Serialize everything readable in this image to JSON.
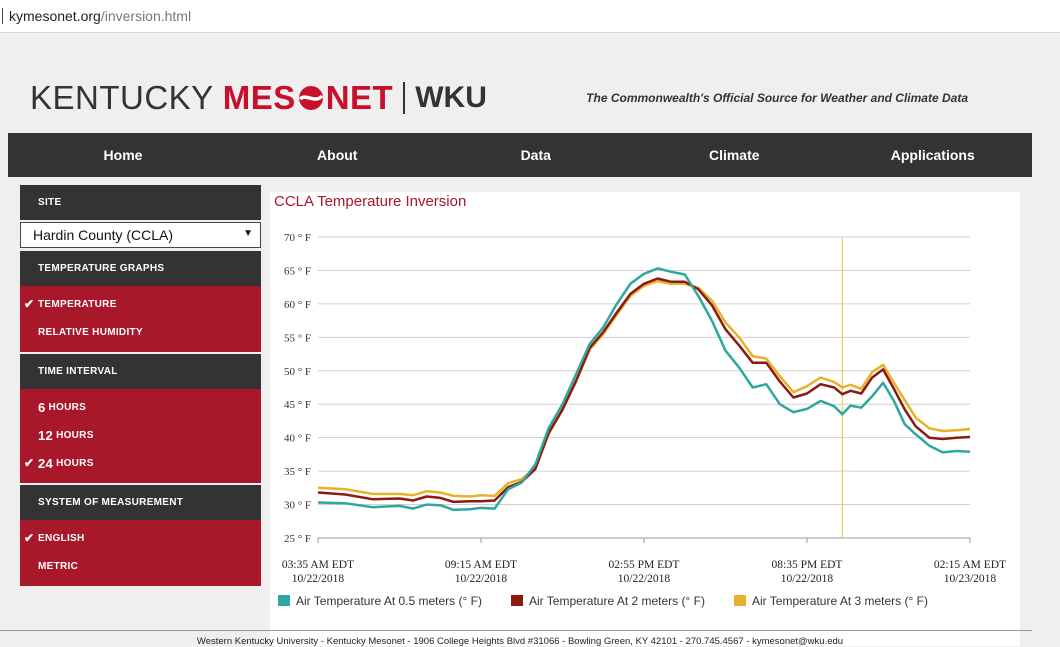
{
  "browser": {
    "url_host": "kymesonet.org",
    "url_path": "/inversion.html"
  },
  "header": {
    "logo_kentucky": "KENTUCKY",
    "logo_mesonet_left": "MES",
    "logo_mesonet_right": "NET",
    "logo_wku": "WKU",
    "tagline": "The Commonwealth's Official Source for Weather and Climate Data"
  },
  "nav": {
    "items": [
      "Home",
      "About",
      "Data",
      "Climate",
      "Applications"
    ]
  },
  "sidebar": {
    "site_heading": "SITE",
    "site_selected": "Hardin County (CCLA)",
    "graphs_heading": "TEMPERATURE GRAPHS",
    "graphs": [
      {
        "label": "TEMPERATURE",
        "checked": true
      },
      {
        "label": "RELATIVE HUMIDITY",
        "checked": false
      }
    ],
    "interval_heading": "TIME INTERVAL",
    "intervals": [
      {
        "num": "6",
        "label": "HOURS",
        "checked": false
      },
      {
        "num": "12",
        "label": "HOURS",
        "checked": false
      },
      {
        "num": "24",
        "label": "HOURS",
        "checked": true
      }
    ],
    "measure_heading": "SYSTEM OF MEASUREMENT",
    "measures": [
      {
        "label": "ENGLISH",
        "checked": true
      },
      {
        "label": "METRIC",
        "checked": false
      }
    ]
  },
  "colors": {
    "accent": "#a8172a",
    "nav": "#333333",
    "series1": "#2ea89e",
    "series2": "#8b1a10",
    "series3": "#e8b12a",
    "marker": "#e8d060"
  },
  "chart_data": {
    "type": "line",
    "title": "CCLA Temperature Inversion",
    "ylim": [
      25,
      70
    ],
    "y_ticks": [
      "25 ° F",
      "30 ° F",
      "35 ° F",
      "40 ° F",
      "45 ° F",
      "50 ° F",
      "55 ° F",
      "60 ° F",
      "65 ° F",
      "70 ° F"
    ],
    "x_ticks": [
      {
        "time": "03:35 AM EDT",
        "date": "10/22/2018"
      },
      {
        "time": "09:15 AM EDT",
        "date": "10/22/2018"
      },
      {
        "time": "02:55 PM EDT",
        "date": "10/22/2018"
      },
      {
        "time": "08:35 PM EDT",
        "date": "10/22/2018"
      },
      {
        "time": "02:15 AM EDT",
        "date": "10/23/2018"
      }
    ],
    "x_unit": "hours since 03:35 AM EDT 10/22/2018",
    "xlim": [
      0,
      24
    ],
    "marker_x": 19.3,
    "grid": true,
    "legend": "bottom",
    "series": [
      {
        "name": "Air Temperature At 0.5 meters (° F)",
        "x": [
          0,
          1,
          2,
          3,
          3.5,
          4,
          4.5,
          5,
          5.6,
          6,
          6.5,
          7,
          7.5,
          8,
          8.5,
          9,
          9.5,
          10,
          10.5,
          11,
          11.5,
          12,
          12.5,
          13,
          13.5,
          14,
          14.5,
          15,
          15.5,
          16,
          16.5,
          17,
          17.5,
          18,
          18.5,
          19,
          19.3,
          19.6,
          20,
          20.4,
          20.8,
          21.2,
          21.6,
          22,
          22.5,
          23,
          23.5,
          24
        ],
        "values": [
          30.3,
          30.2,
          29.6,
          29.8,
          29.4,
          30,
          29.9,
          29.2,
          29.3,
          29.5,
          29.4,
          32.3,
          33.3,
          36,
          41.5,
          45,
          49.5,
          54,
          56.5,
          60,
          63,
          64.5,
          65.3,
          64.8,
          64.4,
          61.2,
          57.5,
          53,
          50.5,
          47.5,
          48,
          45,
          43.8,
          44.3,
          45.5,
          44.7,
          43.5,
          44.8,
          44.5,
          46.2,
          48.2,
          45.5,
          42,
          40.5,
          38.8,
          37.8,
          38,
          37.9
        ]
      },
      {
        "name": "Air Temperature At 2 meters (° F)",
        "x": [
          0,
          1,
          2,
          3,
          3.5,
          4,
          4.5,
          5,
          5.6,
          6,
          6.5,
          7,
          7.5,
          8,
          8.5,
          9,
          9.5,
          10,
          10.5,
          11,
          11.5,
          12,
          12.5,
          13,
          13.5,
          14,
          14.5,
          15,
          15.5,
          16,
          16.5,
          17,
          17.5,
          18,
          18.5,
          19,
          19.3,
          19.6,
          20,
          20.4,
          20.8,
          21.2,
          21.6,
          22,
          22.5,
          23,
          23.5,
          24
        ],
        "values": [
          31.8,
          31.5,
          30.8,
          30.9,
          30.6,
          31.2,
          31,
          30.4,
          30.5,
          30.5,
          30.6,
          32.6,
          33.4,
          35.3,
          40.8,
          44.2,
          48.5,
          53.4,
          55.8,
          58.7,
          61.5,
          63,
          63.8,
          63.3,
          63.3,
          62.2,
          59.8,
          56.2,
          53.8,
          51.2,
          51.2,
          48.4,
          46,
          46.6,
          48,
          47.5,
          46.5,
          47,
          46.6,
          49,
          50.2,
          47.3,
          44.2,
          41.7,
          40,
          39.8,
          40,
          40.1
        ]
      },
      {
        "name": "Air Temperature At 3 meters (° F)",
        "x": [
          0,
          1,
          2,
          3,
          3.5,
          4,
          4.5,
          5,
          5.6,
          6,
          6.5,
          7,
          7.5,
          8,
          8.5,
          9,
          9.5,
          10,
          10.5,
          11,
          11.5,
          12,
          12.5,
          13,
          13.5,
          14,
          14.5,
          15,
          15.5,
          16,
          16.5,
          17,
          17.5,
          18,
          18.5,
          19,
          19.3,
          19.6,
          20,
          20.4,
          20.8,
          21.2,
          21.6,
          22,
          22.5,
          23,
          23.5,
          24
        ],
        "values": [
          32.5,
          32.3,
          31.6,
          31.6,
          31.4,
          32,
          31.8,
          31.3,
          31.2,
          31.4,
          31.3,
          33.2,
          33.8,
          35.5,
          40.6,
          44.2,
          48.4,
          53.2,
          55.5,
          58.4,
          61.2,
          62.7,
          63.4,
          63,
          63,
          62.4,
          60.5,
          57.2,
          55,
          52.2,
          51.8,
          49.2,
          46.8,
          47.7,
          49,
          48.3,
          47.5,
          47.9,
          47.3,
          49.8,
          50.9,
          48.2,
          45.6,
          43,
          41.4,
          41,
          41.1,
          41.3
        ]
      }
    ]
  },
  "footer": {
    "text": "Western Kentucky University - Kentucky Mesonet - 1906 College Heights Blvd #31066 - Bowling Green, KY 42101 - 270.745.4567 - kymesonet@wku.edu"
  }
}
